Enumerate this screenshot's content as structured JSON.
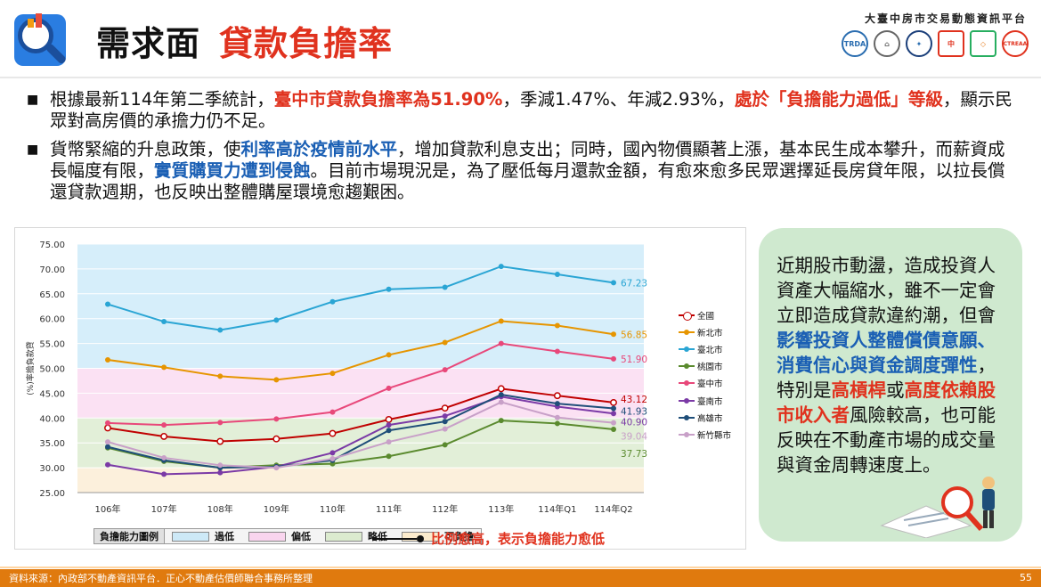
{
  "header": {
    "title_main": "需求面",
    "title_sub": "貸款負擔率",
    "org_name": "大臺中房市交易動態資訊平台",
    "org_logos": [
      "TRDA",
      "",
      "",
      "中",
      "",
      "CTREAA"
    ]
  },
  "bullets": [
    {
      "parts": [
        {
          "text": "根據最新114年第二季統計，",
          "style": "plain"
        },
        {
          "text": "臺中市貸款負擔率為51.90%",
          "style": "red"
        },
        {
          "text": "，季減1.47%、年減2.93%，",
          "style": "plain"
        },
        {
          "text": "處於「負擔能力過低」等級",
          "style": "red"
        },
        {
          "text": "，顯示民眾對高房價的承擔力仍不足。",
          "style": "plain"
        }
      ]
    },
    {
      "parts": [
        {
          "text": "貨幣緊縮的升息政策，使",
          "style": "plain"
        },
        {
          "text": "利率高於疫情前水平",
          "style": "blue"
        },
        {
          "text": "，增加貸款利息支出；同時，國內物價顯著上漲，基本民生成本攀升，而薪資成長幅度有限，",
          "style": "plain"
        },
        {
          "text": "實質購買力遭到侵蝕",
          "style": "blue"
        },
        {
          "text": "。目前市場現況是，為了壓低每月還款金額，有愈來愈多民眾選擇延長房貸年限，以拉長償還貸款週期，也反映出整體購屋環境愈趨艱困。",
          "style": "plain"
        }
      ]
    }
  ],
  "chart_data": {
    "type": "line",
    "ylabel": "(%)率擔負款貸",
    "ylim": [
      25,
      75
    ],
    "yticks": [
      "75.00",
      "70.00",
      "65.00",
      "60.00",
      "55.00",
      "50.00",
      "45.00",
      "40.00",
      "35.00",
      "30.00",
      "25.00"
    ],
    "categories": [
      "106年",
      "107年",
      "108年",
      "109年",
      "110年",
      "111年",
      "112年",
      "113年",
      "114年Q1",
      "114年Q2"
    ],
    "bands": [
      {
        "name": "過低",
        "from": 50,
        "to": 75,
        "color": "#d9f0fb"
      },
      {
        "name": "偏低",
        "from": 40,
        "to": 50,
        "color": "#fce4f4"
      },
      {
        "name": "略低",
        "from": 30,
        "to": 40,
        "color": "#e6f1dd"
      },
      {
        "name": "可負擔",
        "from": 25,
        "to": 30,
        "color": "#fdf3e1"
      }
    ],
    "series": [
      {
        "name": "全國",
        "color": "#c00000",
        "hollow": true,
        "values": [
          38.0,
          36.3,
          35.3,
          35.8,
          36.9,
          39.7,
          42.0,
          45.9,
          44.5,
          43.12
        ],
        "end_label": "43.12"
      },
      {
        "name": "新北市",
        "color": "#e69500",
        "hollow": false,
        "values": [
          51.7,
          50.2,
          48.4,
          47.7,
          49.0,
          52.7,
          55.2,
          59.5,
          58.6,
          56.85
        ],
        "end_label": "56.85"
      },
      {
        "name": "臺北市",
        "color": "#2aa5d4",
        "hollow": false,
        "values": [
          62.9,
          59.4,
          57.7,
          59.7,
          63.4,
          65.9,
          66.3,
          70.5,
          68.9,
          67.23
        ],
        "end_label": "67.23"
      },
      {
        "name": "桃園市",
        "color": "#5a8a2e",
        "hollow": false,
        "values": [
          34.0,
          31.3,
          30.0,
          30.5,
          30.8,
          32.3,
          34.6,
          39.5,
          38.9,
          37.73
        ],
        "end_label": "37.73"
      },
      {
        "name": "臺中市",
        "color": "#e8487a",
        "hollow": false,
        "values": [
          39.0,
          38.6,
          39.1,
          39.8,
          41.2,
          46.0,
          49.7,
          55.0,
          53.4,
          51.9
        ],
        "end_label": "51.90"
      },
      {
        "name": "臺南市",
        "color": "#7b3aa6",
        "hollow": false,
        "values": [
          30.6,
          28.7,
          29.0,
          30.2,
          33.0,
          38.6,
          40.4,
          44.3,
          42.3,
          40.9
        ],
        "end_label": "40.90"
      },
      {
        "name": "高雄市",
        "color": "#1f4e79",
        "hollow": false,
        "values": [
          34.2,
          31.5,
          30.0,
          30.2,
          31.5,
          37.5,
          39.3,
          44.7,
          42.9,
          41.93
        ],
        "end_label": "41.93"
      },
      {
        "name": "新竹縣市",
        "color": "#c8a0c8",
        "hollow": false,
        "values": [
          35.2,
          32.0,
          30.5,
          30.0,
          31.8,
          35.2,
          37.8,
          43.2,
          40.1,
          39.04
        ],
        "end_label": "39.04"
      }
    ]
  },
  "band_legend": {
    "title": "負擔能力圖例",
    "items": [
      {
        "label": "過低",
        "color": "#d9f0fb"
      },
      {
        "label": "偏低",
        "color": "#fce4f4"
      },
      {
        "label": "略低",
        "color": "#e6f1dd"
      },
      {
        "label": "可負擔",
        "color": "#fdf3e1"
      }
    ]
  },
  "note": "比例愈高，表示負擔能力愈低",
  "callout": {
    "parts": [
      {
        "text": "近期股市動盪，造成投資人資產大幅縮水，雖不一定會立即造成貸款違約潮，但會",
        "style": "plain"
      },
      {
        "text": "影響投資人整體償債意願、消費信心與資金調度彈性",
        "style": "blue"
      },
      {
        "text": "，特別是",
        "style": "plain"
      },
      {
        "text": "高槓桿",
        "style": "red"
      },
      {
        "text": "或",
        "style": "plain"
      },
      {
        "text": "高度依賴股市收入者",
        "style": "red"
      },
      {
        "text": "風險較高，也可能反映在不動產市場的成交量與資金周轉速度上。",
        "style": "plain"
      }
    ]
  },
  "footer": {
    "source": "資料來源：內政部不動產資訊平台．正心不動產估價師聯合事務所整理",
    "page": "55"
  }
}
